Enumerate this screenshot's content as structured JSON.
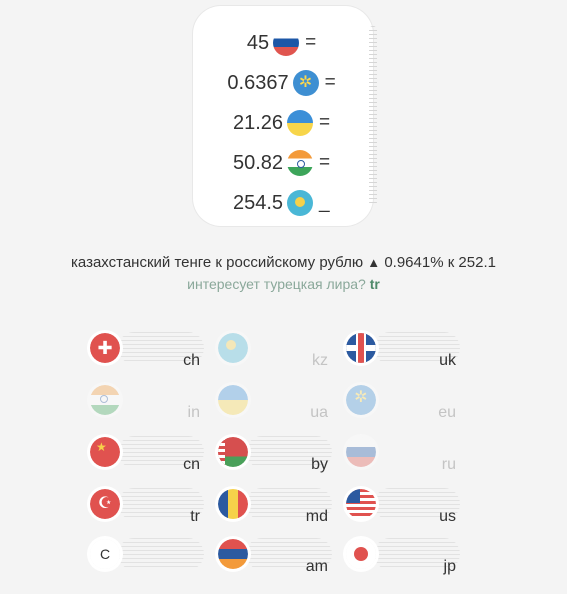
{
  "converter": {
    "rows": [
      {
        "value": "45",
        "flag": "ru",
        "op": "="
      },
      {
        "value": "0.6367",
        "flag": "eu",
        "op": "="
      },
      {
        "value": "21.26",
        "flag": "ua",
        "op": "="
      },
      {
        "value": "50.82",
        "flag": "in",
        "op": "="
      },
      {
        "value": "254.5",
        "flag": "kz",
        "op": "_"
      }
    ]
  },
  "info": {
    "text": "казахстанский тенге к российскому рублю",
    "arrow": "▲",
    "change": "0.9641% к 252.1"
  },
  "hint": {
    "text": "интересует турецкая лира?",
    "code": "tr"
  },
  "currencies": [
    {
      "code": "ch",
      "flag": "ch",
      "active": true
    },
    {
      "code": "kz",
      "flag": "kz",
      "active": false
    },
    {
      "code": "uk",
      "flag": "uk",
      "active": true
    },
    {
      "code": "in",
      "flag": "in",
      "active": false
    },
    {
      "code": "ua",
      "flag": "ua",
      "active": false
    },
    {
      "code": "eu",
      "flag": "eu",
      "active": false
    },
    {
      "code": "cn",
      "flag": "cn",
      "active": true
    },
    {
      "code": "by",
      "flag": "by",
      "active": true
    },
    {
      "code": "ru",
      "flag": "ru",
      "active": false
    },
    {
      "code": "tr",
      "flag": "tr",
      "active": true
    },
    {
      "code": "md",
      "flag": "md",
      "active": true
    },
    {
      "code": "us",
      "flag": "us",
      "active": true
    },
    {
      "code": "c",
      "flag": "c",
      "letter": "C",
      "active": true
    },
    {
      "code": "am",
      "flag": "am",
      "active": true
    },
    {
      "code": "jp",
      "flag": "jp",
      "active": true
    }
  ],
  "colors": {
    "background": "#f4f4f4",
    "accent": "#4e8a6a",
    "hint": "#8aa89a"
  }
}
